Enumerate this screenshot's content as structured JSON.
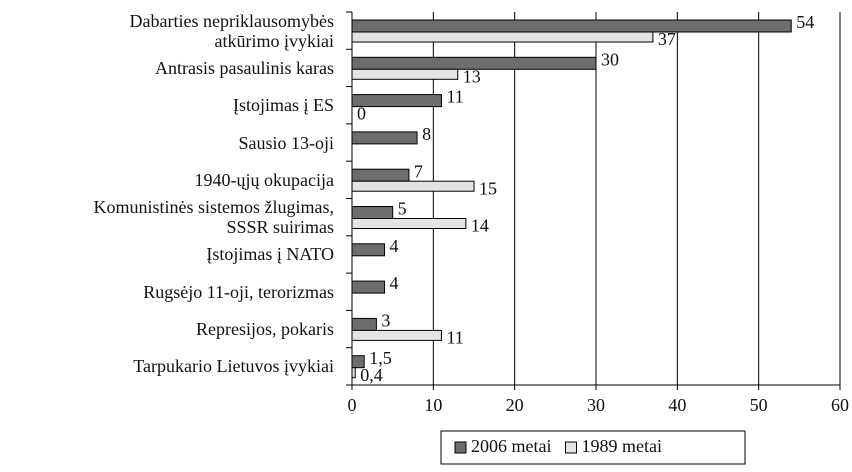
{
  "chart_data": {
    "type": "hbar",
    "categories": [
      "Dabarties nepriklausomybės\natkūrimo įvykiai",
      "Antrasis pasaulinis karas",
      "Įstojimas į ES",
      "Sausio 13-oji",
      "1940-ųjų okupacija",
      "Komunistinės sistemos žlugimas,\nSSSR suirimas",
      "Įstojimas į NATO",
      "Rugsėjo 11-oji, terorizmas",
      "Represijos, pokaris",
      "Tarpukario Lietuvos įvykiai"
    ],
    "series": [
      {
        "name": "2006 metai",
        "color": "#6d6d6d",
        "values": [
          54,
          30,
          11,
          8,
          7,
          5,
          4,
          4,
          3,
          1.5
        ],
        "value_labels": [
          "54",
          "30",
          "11",
          "8",
          "7",
          "5",
          "4",
          "4",
          "3",
          "1,5"
        ]
      },
      {
        "name": "1989 metai",
        "color": "#e4e4e4",
        "values": [
          37,
          13,
          0,
          null,
          15,
          14,
          null,
          null,
          11,
          0.4
        ],
        "value_labels": [
          "37",
          "13",
          "0",
          null,
          "15",
          "14",
          null,
          null,
          "11",
          "0,4"
        ]
      }
    ],
    "xlim": [
      0,
      60
    ],
    "xticks": [
      0,
      10,
      20,
      30,
      40,
      50,
      60
    ],
    "grid": true,
    "legend": "bottom"
  }
}
